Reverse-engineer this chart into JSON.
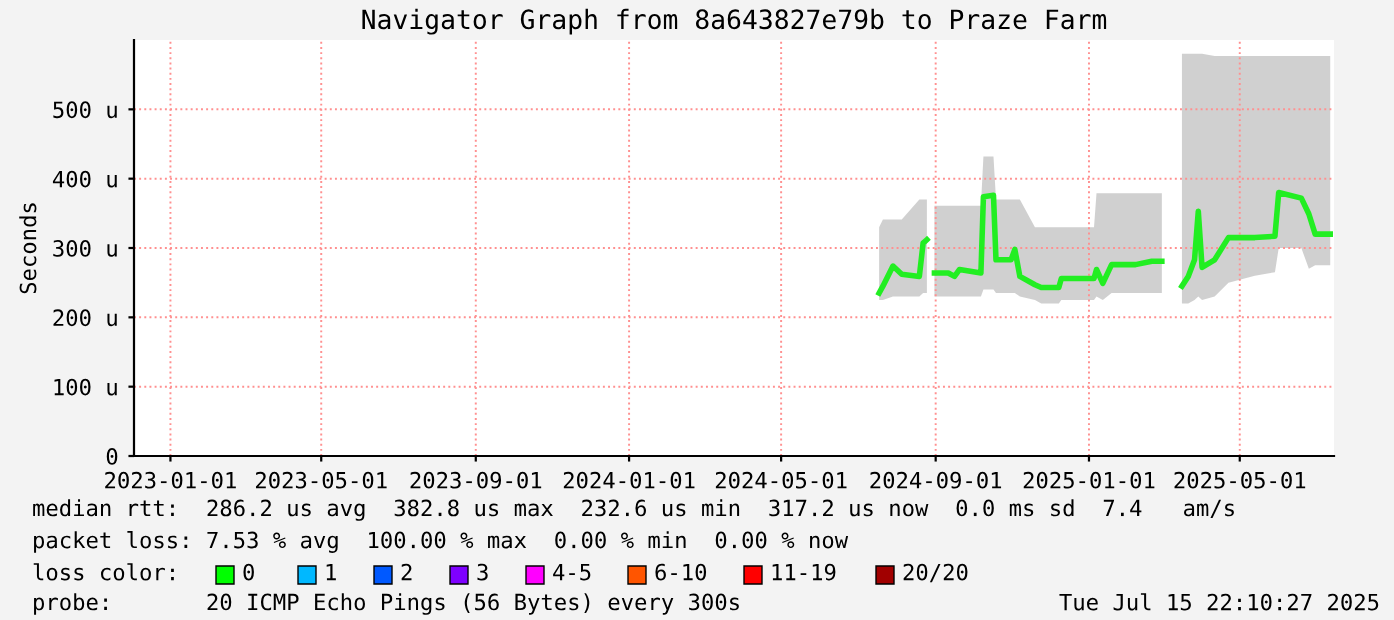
{
  "chart_data": {
    "type": "line",
    "title": "Navigator Graph from 8a643827e79b to Praze Farm",
    "ylabel": "Seconds",
    "x": [
      "2024-07-18",
      "2024-07-21",
      "2024-07-29",
      "2024-08-05",
      "2024-08-19",
      "2024-08-22",
      "2024-08-25",
      "2024-08-28",
      "2024-08-31",
      "2024-09-11",
      "2024-09-16",
      "2024-09-20",
      "2024-10-07",
      "2024-10-09",
      "2024-10-17",
      "2024-10-19",
      "2024-10-31",
      "2024-11-03",
      "2024-11-07",
      "2024-11-19",
      "2024-11-24",
      "2024-12-08",
      "2024-12-10",
      "2025-01-05",
      "2025-01-07",
      "2025-01-12",
      "2025-01-19",
      "2025-02-07",
      "2025-02-20",
      "2025-02-28",
      "2025-03-08",
      "2025-03-16",
      "2025-03-21",
      "2025-03-26",
      "2025-03-29",
      "2025-04-01",
      "2025-04-11",
      "2025-04-22",
      "2025-05-13",
      "2025-05-29",
      "2025-06-01",
      "2025-06-19",
      "2025-06-25",
      "2025-06-30",
      "2025-07-12"
    ],
    "series": [
      {
        "color": "#22ee22",
        "values": [
          235,
          245,
          274,
          262,
          259,
          307,
          312,
          null,
          264,
          264,
          259,
          269,
          264,
          374,
          376,
          283,
          283,
          298,
          259,
          247,
          243,
          243,
          256,
          256,
          269,
          249,
          276,
          276,
          281,
          281,
          null,
          245,
          259,
          283,
          353,
          272,
          283,
          315,
          315,
          317,
          380,
          372,
          349,
          320,
          320
        ],
        "lower": [
          225,
          225,
          230,
          230,
          230,
          235,
          235,
          null,
          230,
          230,
          230,
          230,
          230,
          240,
          240,
          235,
          235,
          235,
          230,
          225,
          220,
          220,
          225,
          225,
          230,
          225,
          235,
          235,
          235,
          235,
          null,
          220,
          220,
          225,
          230,
          225,
          230,
          250,
          260,
          265,
          300,
          300,
          270,
          275,
          275
        ],
        "upper": [
          330,
          341,
          341,
          341,
          370,
          370,
          370,
          null,
          361,
          361,
          361,
          361,
          361,
          432,
          432,
          370,
          370,
          370,
          370,
          330,
          330,
          330,
          330,
          330,
          379,
          379,
          379,
          379,
          379,
          379,
          null,
          580,
          580,
          580,
          580,
          580,
          577,
          577,
          577,
          577,
          577,
          577,
          577,
          577,
          577
        ]
      }
    ],
    "xlim": [
      "2022-12-03",
      "2025-07-15"
    ],
    "xticks": [
      "2023-01-01",
      "2023-05-01",
      "2023-09-01",
      "2024-01-01",
      "2024-05-01",
      "2024-09-01",
      "2025-01-01",
      "2025-05-01"
    ],
    "ylim": [
      0,
      600
    ],
    "yticks": [
      0,
      {
        "value": 100,
        "label": "100 u"
      },
      {
        "value": 200,
        "label": "200 u"
      },
      {
        "value": 300,
        "label": "300 u"
      },
      {
        "value": 400,
        "label": "400 u"
      },
      {
        "value": 500,
        "label": "500 u"
      }
    ],
    "grid": true,
    "marker": "none",
    "line_style": "solid",
    "annotations": [
      "median rtt:  286.2 us avg  382.8 us max  232.6 us min  317.2 us now  0.0 ms sd  7.4   am/s",
      "packet loss: 7.53 % avg  100.00 % max  0.00 % min  0.00 % now",
      "loss color:",
      "0",
      "1",
      "2",
      "3",
      "4-5",
      "6-10",
      "11-19",
      "20/20",
      "probe:       20 ICMP Echo Pings (56 Bytes) every 300s",
      "Tue Jul 15 22:10:27 2025"
    ]
  }
}
